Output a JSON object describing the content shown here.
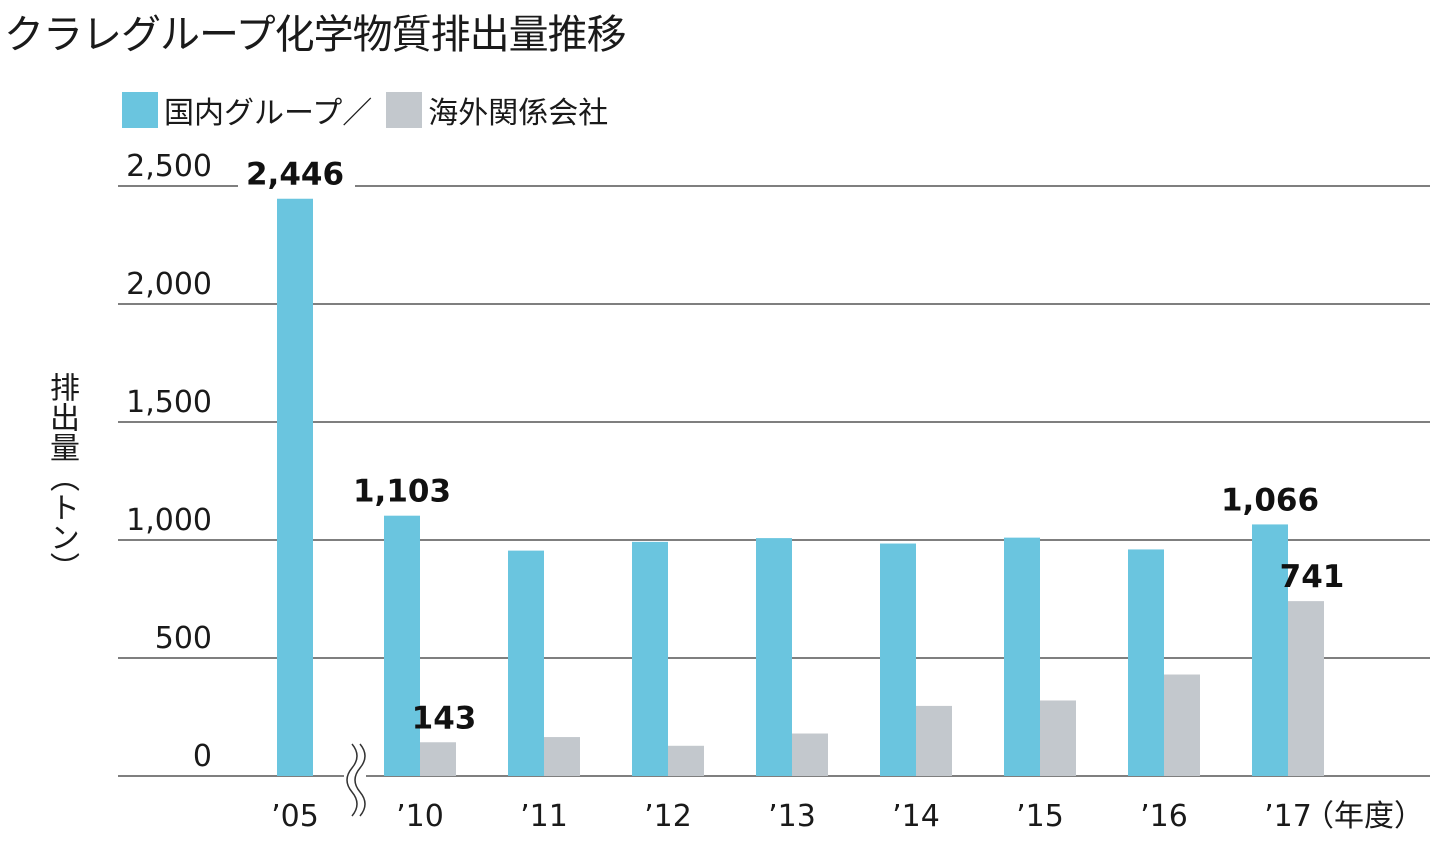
{
  "title": "クラレグループ化学物質排出量推移",
  "legend": {
    "domestic": "国内グループ",
    "separator": "／",
    "overseas": "海外関係会社"
  },
  "colors": {
    "domestic": "#6ac5df",
    "overseas": "#c3c8cd",
    "grid": "#333333"
  },
  "chart_data": {
    "type": "bar",
    "title": "クラレグループ化学物質排出量推移",
    "ylabel": "排出量（トン）",
    "xlabel": "（年度）",
    "ylim": [
      0,
      2500
    ],
    "yticks": [
      "0",
      "500",
      "1,000",
      "1,500",
      "2,000",
      "2,500"
    ],
    "categories": [
      "’05",
      "’10",
      "’11",
      "’12",
      "’13",
      "’14",
      "’15",
      "’16",
      "’17"
    ],
    "axis_break_after": "’05",
    "series": [
      {
        "name": "国内グループ",
        "values": [
          2446,
          1103,
          955,
          992,
          1008,
          985,
          1010,
          960,
          1066
        ],
        "labels": [
          "2,446",
          "1,103",
          "",
          "",
          "",
          "",
          "",
          "",
          "1,066"
        ]
      },
      {
        "name": "海外関係会社",
        "values": [
          null,
          143,
          165,
          128,
          180,
          297,
          320,
          430,
          741
        ],
        "labels": [
          "",
          "143",
          "",
          "",
          "",
          "",
          "",
          "",
          "741"
        ]
      }
    ],
    "grid": true,
    "legend_position": "top-left"
  }
}
